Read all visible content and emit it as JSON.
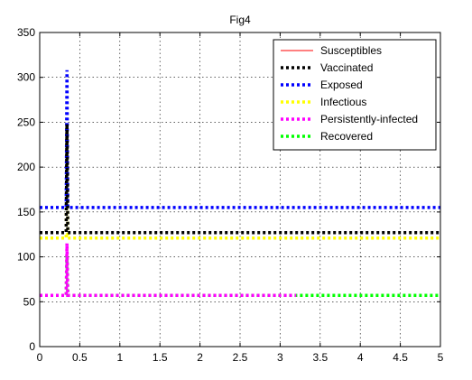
{
  "chart_data": {
    "type": "line",
    "title": "Fig4",
    "xlabel": "",
    "ylabel": "",
    "xlim": [
      0,
      5
    ],
    "ylim": [
      0,
      350
    ],
    "xticks": [
      "0",
      "0.5",
      "1",
      "1.5",
      "2",
      "2.5",
      "3",
      "3.5",
      "4",
      "4.5",
      "5"
    ],
    "yticks": [
      "0",
      "50",
      "100",
      "150",
      "200",
      "250",
      "300",
      "350"
    ],
    "grid": true,
    "legend_position": "top-right",
    "series": [
      {
        "name": "Susceptibles",
        "color": "#ff0000",
        "style": "solid",
        "x": [
          0,
          0.33,
          0.34,
          0.35,
          5
        ],
        "y": [
          0,
          0,
          0,
          0,
          0
        ]
      },
      {
        "name": "Vaccinated",
        "color": "#000000",
        "style": "dotted",
        "x": [
          0,
          0.33,
          0.34,
          0.35,
          5
        ],
        "y": [
          127,
          127,
          248,
          127,
          127
        ]
      },
      {
        "name": "Exposed",
        "color": "#0000ff",
        "style": "dotted",
        "x": [
          0,
          0.33,
          0.34,
          0.35,
          0.5,
          5
        ],
        "y": [
          155,
          155,
          308,
          155,
          155,
          155
        ]
      },
      {
        "name": "Infectious",
        "color": "#ffff00",
        "style": "dotted",
        "x": [
          0,
          0.33,
          0.34,
          0.35,
          5
        ],
        "y": [
          121,
          121,
          245,
          121,
          121
        ]
      },
      {
        "name": "Persistently-infected",
        "color": "#ff00ff",
        "style": "dotted",
        "x": [
          0,
          0.33,
          0.34,
          0.35,
          3.2
        ],
        "y": [
          57,
          57,
          115,
          57,
          57
        ]
      },
      {
        "name": "Recovered",
        "color": "#00ff00",
        "style": "dotted",
        "x": [
          0,
          0.33,
          0.34,
          0.35,
          5
        ],
        "y": [
          57,
          57,
          100,
          57,
          57
        ]
      }
    ]
  }
}
